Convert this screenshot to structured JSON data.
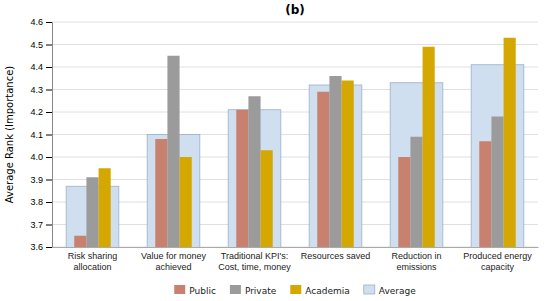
{
  "chart_data": {
    "type": "bar",
    "title": "(b)",
    "ylabel": "Average Rank (Importance)",
    "categories": [
      "Risk sharing\nallocation",
      "Value for money\nachieved",
      "Traditional KPI's:\nCost, time, money",
      "Resources saved",
      "Reduction in\nemissions",
      "Produced energy\ncapacity"
    ],
    "series": [
      {
        "name": "Public",
        "color": "#C8816E",
        "values": [
          3.65,
          4.08,
          4.21,
          4.29,
          4.0,
          4.07
        ]
      },
      {
        "name": "Private",
        "color": "#9B9B9B",
        "values": [
          3.91,
          4.45,
          4.27,
          4.36,
          4.09,
          4.18
        ]
      },
      {
        "name": "Academia",
        "color": "#D4A800",
        "values": [
          3.95,
          4.0,
          4.03,
          4.34,
          4.49,
          4.53
        ]
      },
      {
        "name": "Average",
        "color": "#D0DFF0",
        "values": [
          3.87,
          4.1,
          4.21,
          4.32,
          4.33,
          4.41
        ]
      }
    ],
    "ylim": [
      3.6,
      4.6
    ],
    "yticks": [
      3.6,
      3.7,
      3.8,
      3.9,
      {
        "value": 4.0,
        "label": "4.0"
      },
      4.1,
      4.2,
      4.3,
      4.4,
      4.5,
      4.6
    ],
    "grid": true,
    "legend": "bottom"
  }
}
